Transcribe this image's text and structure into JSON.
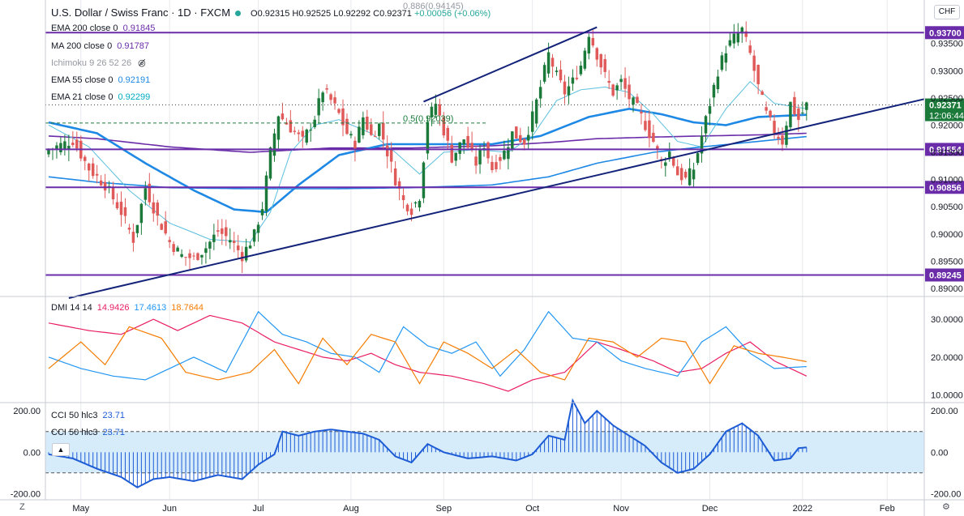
{
  "header": {
    "symbol": "U.S. Dollar / Swiss Franc · 1D · FXCM",
    "open": "O0.92315",
    "high": "H0.92525",
    "low": "L0.92292",
    "close": "C0.92371",
    "change": "+0.00056 (+0.06%)"
  },
  "currency_button": "CHF",
  "indicators": [
    {
      "label": "EMA 200 close 0",
      "value": "0.91845",
      "color": "#7b1fa2"
    },
    {
      "label": "MA 200 close 0",
      "value": "0.91787",
      "color": "#7b1fa2"
    },
    {
      "label": "Ichimoku 9 26 52 26",
      "value": "",
      "color": "#787b86"
    },
    {
      "label": "EMA 55 close 0",
      "value": "0.92191",
      "color": "#1e88e5"
    },
    {
      "label": "EMA 21 close 0",
      "value": "0.92299",
      "color": "#00acc1"
    }
  ],
  "dmi": {
    "label": "DMI 14 14",
    "v1": "14.9426",
    "v2": "17.4613",
    "v3": "18.7644"
  },
  "cci": [
    {
      "label": "CCI 50 hlc3",
      "value": "23.71"
    },
    {
      "label": "CCI 50 hlc3",
      "value": "23.71"
    }
  ],
  "colors": {
    "up": "#1b7a3a",
    "down": "#e05a5a",
    "level": "#6a2ca8",
    "trend": "#14237a",
    "ema21": "#5bc0de",
    "ema55": "#1e88e5",
    "ma200": "#1e88e5",
    "ema200": "#6a2ca8",
    "dmi_plus": "#2196f3",
    "dmi_minus": "#e91e63",
    "adx": "#f57c00",
    "cci": "#1e5cd6",
    "cci_band": "#d6ecfb",
    "axis_text": "#131722",
    "grid": "#e8e9ed"
  },
  "chart_data": [
    {
      "type": "candlestick",
      "title": "U.S. Dollar / Swiss Franc · 1D · FXCM",
      "x_range": [
        "Apr 23",
        "Feb"
      ],
      "ylim": [
        0.8885,
        0.943
      ],
      "yticks": [
        "0.93500",
        "0.93000",
        "0.92500",
        "0.92000",
        "0.91500",
        "0.91000",
        "0.90500",
        "0.90000",
        "0.89500",
        "0.89000"
      ],
      "xticks": [
        "May",
        "Jun",
        "Jul",
        "Aug",
        "Sep",
        "Oct",
        "Nov",
        "Dec",
        "2022",
        "Feb"
      ],
      "horizontal_levels": [
        {
          "label": "0.93700",
          "value": 0.937
        },
        {
          "label": "0.91554",
          "value": 0.91554
        },
        {
          "label": "0.90856",
          "value": 0.90856
        },
        {
          "label": "0.89245",
          "value": 0.89245
        }
      ],
      "current_price": {
        "label": "0.92371",
        "value": 0.92371,
        "countdown": "12:06:44"
      },
      "fib_label": "0.5(0.92039)",
      "fib_value": 0.92039,
      "top_fib_label": "0.886(0.94145)",
      "trendlines": [
        {
          "from": {
            "bar": 5,
            "price": 0.8882
          },
          "to": {
            "bar": 190,
            "price": 0.9201
          }
        },
        {
          "from": {
            "bar": 93,
            "price": 0.9243
          },
          "to": {
            "bar": 136,
            "price": 0.938
          }
        }
      ],
      "price_path": [
        [
          0,
          0.9155
        ],
        [
          6,
          0.9172
        ],
        [
          10,
          0.912
        ],
        [
          14,
          0.909
        ],
        [
          18,
          0.904
        ],
        [
          21,
          0.899
        ],
        [
          24,
          0.9085
        ],
        [
          27,
          0.903
        ],
        [
          30,
          0.8985
        ],
        [
          33,
          0.896
        ],
        [
          36,
          0.8955
        ],
        [
          39,
          0.8975
        ],
        [
          42,
          0.9005
        ],
        [
          45,
          0.899
        ],
        [
          48,
          0.896
        ],
        [
          51,
          0.8998
        ],
        [
          53,
          0.905
        ],
        [
          55,
          0.915
        ],
        [
          57,
          0.922
        ],
        [
          60,
          0.9195
        ],
        [
          63,
          0.917
        ],
        [
          66,
          0.9215
        ],
        [
          68,
          0.9265
        ],
        [
          70,
          0.9245
        ],
        [
          72,
          0.922
        ],
        [
          74,
          0.9185
        ],
        [
          76,
          0.9165
        ],
        [
          78,
          0.9215
        ],
        [
          80,
          0.918
        ],
        [
          82,
          0.92
        ],
        [
          84,
          0.915
        ],
        [
          86,
          0.91
        ],
        [
          88,
          0.906
        ],
        [
          90,
          0.9045
        ],
        [
          92,
          0.907
        ],
        [
          94,
          0.921
        ],
        [
          96,
          0.924
        ],
        [
          98,
          0.919
        ],
        [
          100,
          0.914
        ],
        [
          103,
          0.9175
        ],
        [
          106,
          0.913
        ],
        [
          108,
          0.9165
        ],
        [
          110,
          0.912
        ],
        [
          113,
          0.915
        ],
        [
          115,
          0.9185
        ],
        [
          118,
          0.917
        ],
        [
          120,
          0.9215
        ],
        [
          122,
          0.927
        ],
        [
          124,
          0.933
        ],
        [
          126,
          0.929
        ],
        [
          128,
          0.926
        ],
        [
          130,
          0.928
        ],
        [
          132,
          0.931
        ],
        [
          134,
          0.937
        ],
        [
          136,
          0.933
        ],
        [
          138,
          0.929
        ],
        [
          140,
          0.926
        ],
        [
          142,
          0.928
        ],
        [
          144,
          0.925
        ],
        [
          146,
          0.923
        ],
        [
          148,
          0.92
        ],
        [
          150,
          0.917
        ],
        [
          152,
          0.913
        ],
        [
          154,
          0.915
        ],
        [
          156,
          0.911
        ],
        [
          158,
          0.91
        ],
        [
          160,
          0.912
        ],
        [
          162,
          0.918
        ],
        [
          164,
          0.924
        ],
        [
          166,
          0.93
        ],
        [
          168,
          0.934
        ],
        [
          170,
          0.936
        ],
        [
          172,
          0.9375
        ],
        [
          174,
          0.933
        ],
        [
          176,
          0.927
        ],
        [
          178,
          0.922
        ],
        [
          180,
          0.919
        ],
        [
          182,
          0.917
        ],
        [
          184,
          0.924
        ],
        [
          186,
          0.921
        ],
        [
          188,
          0.9237
        ]
      ],
      "ema21_path": [
        [
          0,
          0.92
        ],
        [
          10,
          0.916
        ],
        [
          20,
          0.908
        ],
        [
          30,
          0.902
        ],
        [
          40,
          0.899
        ],
        [
          50,
          0.8985
        ],
        [
          55,
          0.904
        ],
        [
          60,
          0.915
        ],
        [
          66,
          0.92
        ],
        [
          72,
          0.921
        ],
        [
          80,
          0.9185
        ],
        [
          86,
          0.915
        ],
        [
          92,
          0.911
        ],
        [
          98,
          0.915
        ],
        [
          106,
          0.9155
        ],
        [
          114,
          0.915
        ],
        [
          120,
          0.918
        ],
        [
          126,
          0.9245
        ],
        [
          132,
          0.9265
        ],
        [
          138,
          0.927
        ],
        [
          144,
          0.926
        ],
        [
          150,
          0.922
        ],
        [
          156,
          0.917
        ],
        [
          162,
          0.916
        ],
        [
          168,
          0.923
        ],
        [
          174,
          0.928
        ],
        [
          180,
          0.924
        ],
        [
          188,
          0.923
        ]
      ],
      "ema55_path": [
        [
          0,
          0.9205
        ],
        [
          12,
          0.9185
        ],
        [
          24,
          0.913
        ],
        [
          36,
          0.908
        ],
        [
          46,
          0.9045
        ],
        [
          54,
          0.904
        ],
        [
          62,
          0.909
        ],
        [
          72,
          0.9145
        ],
        [
          84,
          0.9165
        ],
        [
          96,
          0.9165
        ],
        [
          110,
          0.9165
        ],
        [
          122,
          0.918
        ],
        [
          134,
          0.9215
        ],
        [
          144,
          0.923
        ],
        [
          152,
          0.922
        ],
        [
          160,
          0.9205
        ],
        [
          168,
          0.92
        ],
        [
          176,
          0.9215
        ],
        [
          188,
          0.9219
        ]
      ],
      "ma200_path": [
        [
          0,
          0.9105
        ],
        [
          12,
          0.9095
        ],
        [
          30,
          0.9085
        ],
        [
          50,
          0.9083
        ],
        [
          70,
          0.9083
        ],
        [
          90,
          0.9085
        ],
        [
          110,
          0.909
        ],
        [
          124,
          0.9105
        ],
        [
          136,
          0.913
        ],
        [
          150,
          0.915
        ],
        [
          162,
          0.916
        ],
        [
          176,
          0.917
        ],
        [
          188,
          0.9179
        ]
      ],
      "ema200_path": [
        [
          0,
          0.918
        ],
        [
          12,
          0.9175
        ],
        [
          30,
          0.916
        ],
        [
          50,
          0.915
        ],
        [
          70,
          0.9158
        ],
        [
          90,
          0.9158
        ],
        [
          110,
          0.9162
        ],
        [
          124,
          0.9168
        ],
        [
          136,
          0.9175
        ],
        [
          150,
          0.9178
        ],
        [
          162,
          0.918
        ],
        [
          176,
          0.9182
        ],
        [
          188,
          0.9185
        ]
      ]
    },
    {
      "type": "line",
      "title": "DMI 14 14",
      "ylim": [
        8,
        36
      ],
      "yticks": [
        "30.0000",
        "20.0000",
        "10.0000"
      ],
      "series": [
        {
          "name": "14.9426",
          "values": [
            [
              0,
              29
            ],
            [
              10,
              27
            ],
            [
              18,
              26
            ],
            [
              26,
              30
            ],
            [
              32,
              27
            ],
            [
              40,
              31
            ],
            [
              48,
              29
            ],
            [
              56,
              24
            ],
            [
              62,
              22
            ],
            [
              68,
              20
            ],
            [
              74,
              19
            ],
            [
              80,
              21
            ],
            [
              86,
              18
            ],
            [
              92,
              16
            ],
            [
              100,
              15
            ],
            [
              108,
              13
            ],
            [
              114,
              11
            ],
            [
              120,
              14
            ],
            [
              128,
              16
            ],
            [
              136,
              24
            ],
            [
              142,
              22
            ],
            [
              150,
              19
            ],
            [
              156,
              16
            ],
            [
              162,
              17
            ],
            [
              168,
              21
            ],
            [
              174,
              24
            ],
            [
              180,
              19
            ],
            [
              188,
              15
            ]
          ]
        },
        {
          "name": "17.4613",
          "values": [
            [
              0,
              20
            ],
            [
              8,
              17
            ],
            [
              16,
              15
            ],
            [
              24,
              14
            ],
            [
              30,
              17
            ],
            [
              36,
              20
            ],
            [
              44,
              16
            ],
            [
              52,
              32
            ],
            [
              58,
              26
            ],
            [
              64,
              24
            ],
            [
              70,
              21
            ],
            [
              76,
              20
            ],
            [
              82,
              16
            ],
            [
              88,
              28
            ],
            [
              94,
              23
            ],
            [
              100,
              21
            ],
            [
              106,
              24
            ],
            [
              112,
              15
            ],
            [
              118,
              22
            ],
            [
              124,
              32
            ],
            [
              130,
              25
            ],
            [
              136,
              24
            ],
            [
              142,
              19
            ],
            [
              148,
              17
            ],
            [
              156,
              15
            ],
            [
              162,
              24
            ],
            [
              168,
              28
            ],
            [
              174,
              21
            ],
            [
              180,
              17
            ],
            [
              188,
              17.5
            ]
          ]
        },
        {
          "name": "18.7644",
          "values": [
            [
              0,
              17
            ],
            [
              8,
              24
            ],
            [
              14,
              18
            ],
            [
              20,
              28
            ],
            [
              28,
              25
            ],
            [
              34,
              16
            ],
            [
              42,
              14
            ],
            [
              50,
              16
            ],
            [
              56,
              22
            ],
            [
              62,
              13
            ],
            [
              68,
              25
            ],
            [
              74,
              18
            ],
            [
              80,
              26
            ],
            [
              86,
              24
            ],
            [
              92,
              13
            ],
            [
              98,
              24
            ],
            [
              104,
              21
            ],
            [
              110,
              17
            ],
            [
              116,
              22
            ],
            [
              122,
              16
            ],
            [
              128,
              14
            ],
            [
              134,
              25
            ],
            [
              140,
              24
            ],
            [
              146,
              20
            ],
            [
              152,
              25
            ],
            [
              158,
              24
            ],
            [
              164,
              13
            ],
            [
              170,
              23
            ],
            [
              176,
              21
            ],
            [
              182,
              20
            ],
            [
              188,
              18.8
            ]
          ]
        }
      ]
    },
    {
      "type": "bar",
      "title": "CCI 50 hlc3",
      "ylim": [
        -230,
        240
      ],
      "yticks": [
        "200.00",
        "0.00",
        "-200.00"
      ],
      "bands": [
        100,
        -100
      ],
      "values": [
        [
          0,
          -10
        ],
        [
          6,
          -30
        ],
        [
          12,
          -80
        ],
        [
          18,
          -120
        ],
        [
          22,
          -170
        ],
        [
          26,
          -130
        ],
        [
          30,
          -120
        ],
        [
          36,
          -140
        ],
        [
          42,
          -110
        ],
        [
          48,
          -130
        ],
        [
          52,
          -60
        ],
        [
          56,
          -10
        ],
        [
          58,
          100
        ],
        [
          62,
          80
        ],
        [
          66,
          100
        ],
        [
          70,
          110
        ],
        [
          74,
          100
        ],
        [
          78,
          90
        ],
        [
          82,
          60
        ],
        [
          86,
          -20
        ],
        [
          90,
          -50
        ],
        [
          94,
          40
        ],
        [
          98,
          0
        ],
        [
          104,
          -30
        ],
        [
          110,
          -20
        ],
        [
          116,
          -40
        ],
        [
          120,
          -10
        ],
        [
          124,
          80
        ],
        [
          128,
          60
        ],
        [
          130,
          250
        ],
        [
          133,
          140
        ],
        [
          136,
          200
        ],
        [
          140,
          130
        ],
        [
          144,
          80
        ],
        [
          148,
          30
        ],
        [
          152,
          -50
        ],
        [
          156,
          -100
        ],
        [
          160,
          -80
        ],
        [
          164,
          -10
        ],
        [
          168,
          100
        ],
        [
          172,
          140
        ],
        [
          176,
          80
        ],
        [
          180,
          -40
        ],
        [
          184,
          -30
        ],
        [
          186,
          20
        ],
        [
          188,
          23.71
        ]
      ]
    }
  ]
}
